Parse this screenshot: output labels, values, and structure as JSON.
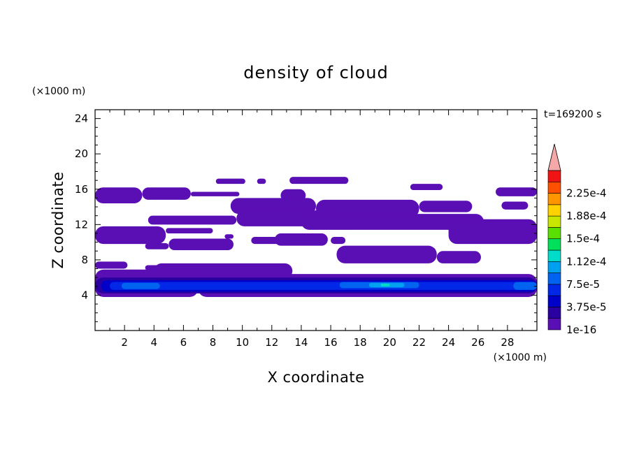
{
  "chart_data": {
    "type": "heatmap",
    "title": "density of cloud",
    "xlabel": "X coordinate",
    "ylabel": "Z coordinate",
    "x_unit": "(×1000 m)",
    "y_unit": "(×1000 m)",
    "time_label": "t=169200 s",
    "xlim": [
      0,
      30
    ],
    "ylim": [
      0,
      25
    ],
    "x_ticks": [
      2,
      4,
      6,
      8,
      10,
      12,
      14,
      16,
      18,
      20,
      22,
      24,
      26,
      28
    ],
    "x_tick_labels": [
      "2",
      "4",
      "6",
      "8",
      "10",
      "12",
      "14",
      "16",
      "18",
      "20",
      "22",
      "24",
      "26",
      "28"
    ],
    "y_ticks": [
      4,
      8,
      12,
      16,
      20,
      24
    ],
    "y_tick_labels": [
      "4",
      "8",
      "12",
      "16",
      "20",
      "24"
    ],
    "colorbar": {
      "levels": [
        1e-16,
        1.875e-05,
        3.75e-05,
        5.625e-05,
        7.5e-05,
        9.375e-05,
        0.0001125,
        0.00013125,
        0.00015,
        0.00016875,
        0.0001875,
        0.00020625,
        0.000225,
        0.00024375
      ],
      "labels": [
        "1e-16",
        "3.75e-5",
        "7.5e-5",
        "1.12e-4",
        "1.5e-4",
        "1.88e-4",
        "2.25e-4"
      ],
      "label_values": [
        1e-16,
        3.75e-05,
        7.5e-05,
        0.0001125,
        0.00015,
        0.0001875,
        0.000225
      ],
      "colors": [
        "#5a0fb4",
        "#2a00a0",
        "#0000c8",
        "#0028e6",
        "#0064f0",
        "#00a0f0",
        "#00dcc8",
        "#00e05a",
        "#5ae000",
        "#c8e600",
        "#ffd200",
        "#ff9600",
        "#ff5000",
        "#f01414"
      ],
      "overflow_color": "#f4a8a8"
    },
    "cloud_regions": [
      {
        "level": 0,
        "x": [
          0.0,
          3.2
        ],
        "z": [
          14.4,
          16.2
        ]
      },
      {
        "level": 0,
        "x": [
          3.2,
          6.5
        ],
        "z": [
          14.8,
          16.2
        ]
      },
      {
        "level": 0,
        "x": [
          6.5,
          9.8
        ],
        "z": [
          15.2,
          15.7
        ]
      },
      {
        "level": 0,
        "x": [
          12.6,
          14.3
        ],
        "z": [
          14.6,
          16.0
        ]
      },
      {
        "level": 0,
        "x": [
          8.2,
          10.2
        ],
        "z": [
          16.6,
          17.2
        ]
      },
      {
        "level": 0,
        "x": [
          11.0,
          11.6
        ],
        "z": [
          16.6,
          17.2
        ]
      },
      {
        "level": 0,
        "x": [
          13.2,
          17.2
        ],
        "z": [
          16.6,
          17.4
        ]
      },
      {
        "level": 0,
        "x": [
          21.4,
          23.6
        ],
        "z": [
          15.9,
          16.6
        ]
      },
      {
        "level": 0,
        "x": [
          27.2,
          30.0
        ],
        "z": [
          15.2,
          16.2
        ]
      },
      {
        "level": 0,
        "x": [
          27.6,
          29.4
        ],
        "z": [
          13.7,
          14.6
        ]
      },
      {
        "level": 0,
        "x": [
          9.2,
          15.0
        ],
        "z": [
          13.2,
          15.0
        ]
      },
      {
        "level": 0,
        "x": [
          15.0,
          22.0
        ],
        "z": [
          12.8,
          14.8
        ]
      },
      {
        "level": 0,
        "x": [
          22.0,
          25.6
        ],
        "z": [
          13.4,
          14.7
        ]
      },
      {
        "level": 0,
        "x": [
          3.6,
          9.6
        ],
        "z": [
          12.0,
          13.0
        ]
      },
      {
        "level": 0,
        "x": [
          9.6,
          16.2
        ],
        "z": [
          11.8,
          13.6
        ]
      },
      {
        "level": 0,
        "x": [
          14.0,
          26.4
        ],
        "z": [
          11.4,
          13.2
        ]
      },
      {
        "level": 0,
        "x": [
          24.0,
          30.0
        ],
        "z": [
          9.8,
          12.6
        ]
      },
      {
        "level": 0,
        "x": [
          0.0,
          4.8
        ],
        "z": [
          9.8,
          11.8
        ]
      },
      {
        "level": 0,
        "x": [
          4.8,
          8.0
        ],
        "z": [
          11.0,
          11.6
        ]
      },
      {
        "level": 0,
        "x": [
          5.0,
          9.4
        ],
        "z": [
          9.1,
          10.4
        ]
      },
      {
        "level": 0,
        "x": [
          10.6,
          12.6
        ],
        "z": [
          9.8,
          10.6
        ]
      },
      {
        "level": 0,
        "x": [
          12.2,
          15.8
        ],
        "z": [
          9.6,
          11.0
        ]
      },
      {
        "level": 0,
        "x": [
          16.0,
          17.0
        ],
        "z": [
          9.8,
          10.6
        ]
      },
      {
        "level": 0,
        "x": [
          3.4,
          5.0
        ],
        "z": [
          9.2,
          9.9
        ]
      },
      {
        "level": 0,
        "x": [
          8.8,
          9.4
        ],
        "z": [
          10.4,
          10.9
        ]
      },
      {
        "level": 0,
        "x": [
          16.4,
          23.2
        ],
        "z": [
          7.6,
          9.6
        ]
      },
      {
        "level": 0,
        "x": [
          23.2,
          26.2
        ],
        "z": [
          7.6,
          9.0
        ]
      },
      {
        "level": 0,
        "x": [
          0.0,
          2.2
        ],
        "z": [
          7.0,
          7.8
        ]
      },
      {
        "level": 0,
        "x": [
          3.4,
          6.8
        ],
        "z": [
          6.8,
          7.4
        ]
      },
      {
        "level": 0,
        "x": [
          4.0,
          13.4
        ],
        "z": [
          5.9,
          7.6
        ]
      },
      {
        "level": 0,
        "x": [
          0.0,
          7.0
        ],
        "z": [
          3.8,
          6.9
        ]
      },
      {
        "level": 0,
        "x": [
          7.0,
          30.0
        ],
        "z": [
          3.8,
          6.4
        ]
      },
      {
        "level": 1,
        "x": [
          0.0,
          30.0
        ],
        "z": [
          4.2,
          6.0
        ]
      },
      {
        "level": 2,
        "x": [
          0.4,
          30.0
        ],
        "z": [
          4.4,
          5.7
        ]
      },
      {
        "level": 3,
        "x": [
          1.0,
          29.6
        ],
        "z": [
          4.6,
          5.5
        ]
      },
      {
        "level": 4,
        "x": [
          1.8,
          4.4
        ],
        "z": [
          4.7,
          5.4
        ]
      },
      {
        "level": 4,
        "x": [
          16.6,
          22.0
        ],
        "z": [
          4.8,
          5.5
        ]
      },
      {
        "level": 4,
        "x": [
          28.4,
          30.0
        ],
        "z": [
          4.6,
          5.5
        ]
      },
      {
        "level": 5,
        "x": [
          18.6,
          21.0
        ],
        "z": [
          4.9,
          5.4
        ]
      },
      {
        "level": 6,
        "x": [
          19.4,
          20.0
        ],
        "z": [
          5.0,
          5.3
        ]
      }
    ]
  }
}
